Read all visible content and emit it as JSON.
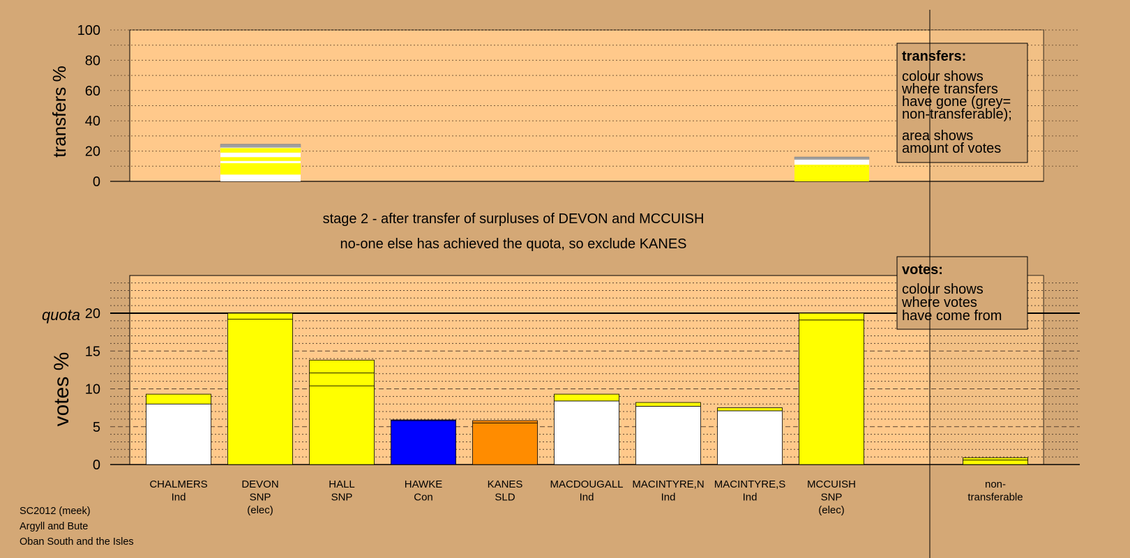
{
  "footer": {
    "line1": "SC2012 (meek)",
    "line2": "Argyll and Bute",
    "line3": "Oban South and the Isles"
  },
  "stage": {
    "line1": "stage 2 - after transfer of surpluses of DEVON and MCCUISH",
    "line2": "no-one else has achieved the quota, so exclude KANES"
  },
  "legend_transfers": {
    "title": "transfers:",
    "body": [
      "colour shows",
      "where transfers",
      "have gone (grey=",
      "non-transferable);"
    ],
    "body2": [
      "area shows",
      "amount of votes"
    ]
  },
  "legend_votes": {
    "title": "votes:",
    "body": [
      "colour shows",
      "where votes",
      "have come from"
    ]
  },
  "colors": {
    "page_background": "#d4a876",
    "plot_background": "#ffc98b",
    "shaded_background": "#e2b57f",
    "white": "#ffffff",
    "snp_yellow": "#ffff00",
    "con_blue": "#0000ff",
    "sld_orange": "#ff8c00",
    "grey": "#a0a0a0"
  },
  "chart_data": [
    {
      "type": "bar",
      "stacked": true,
      "ylabel": "transfers %",
      "ylim": [
        0,
        100
      ],
      "yticks": [
        0,
        20,
        40,
        60,
        80,
        100
      ],
      "grid": "dotted",
      "bars": [
        {
          "candidate": "DEVON",
          "segments": [
            {
              "value": 4.5,
              "color": "#ffffff"
            },
            {
              "value": 1.5,
              "color": "#ffff00"
            },
            {
              "value": 6.0,
              "color": "#ffff00"
            },
            {
              "value": 1.5,
              "color": "#ffffff"
            },
            {
              "value": 2.5,
              "color": "#ffff00"
            },
            {
              "value": 3.0,
              "color": "#ffffff"
            },
            {
              "value": 3.0,
              "color": "#ffff00"
            },
            {
              "value": 0.5,
              "color": "#ffffff"
            },
            {
              "value": 2.0,
              "color": "#a0a0a0"
            }
          ]
        },
        {
          "candidate": "MCCUISH",
          "segments": [
            {
              "value": 10.0,
              "color": "#ffff00"
            },
            {
              "value": 1.0,
              "color": "#ffff00"
            },
            {
              "value": 3.5,
              "color": "#ffffff"
            },
            {
              "value": 1.5,
              "color": "#a0a0a0"
            }
          ]
        }
      ]
    },
    {
      "type": "bar",
      "stacked": true,
      "ylabel": "votes %",
      "ylim": [
        0,
        20
      ],
      "yticks": [
        0,
        5,
        10,
        15,
        20
      ],
      "quota": {
        "label": "quota",
        "value": 20
      },
      "grid": "dashed",
      "categories": [
        {
          "name": "CHALMERS",
          "party": "Ind",
          "note": ""
        },
        {
          "name": "DEVON",
          "party": "SNP",
          "note": "(elec)"
        },
        {
          "name": "HALL",
          "party": "SNP",
          "note": ""
        },
        {
          "name": "HAWKE",
          "party": "Con",
          "note": ""
        },
        {
          "name": "KANES",
          "party": "SLD",
          "note": ""
        },
        {
          "name": "MACDOUGALL",
          "party": "Ind",
          "note": ""
        },
        {
          "name": "MACINTYRE,N",
          "party": "Ind",
          "note": ""
        },
        {
          "name": "MACINTYRE,S",
          "party": "Ind",
          "note": ""
        },
        {
          "name": "MCCUISH",
          "party": "SNP",
          "note": "(elec)"
        },
        {
          "name": "non-",
          "party": "transferable",
          "note": ""
        }
      ],
      "bars": [
        {
          "segments": [
            {
              "value": 8.0,
              "color": "#ffffff"
            },
            {
              "value": 1.3,
              "color": "#ffff00"
            }
          ]
        },
        {
          "segments": [
            {
              "value": 19.2,
              "color": "#ffff00"
            },
            {
              "value": 0.8,
              "color": "#ffff00"
            }
          ]
        },
        {
          "segments": [
            {
              "value": 10.4,
              "color": "#ffff00"
            },
            {
              "value": 1.7,
              "color": "#ffff00"
            },
            {
              "value": 1.7,
              "color": "#ffff00"
            }
          ]
        },
        {
          "segments": [
            {
              "value": 5.8,
              "color": "#0000ff"
            },
            {
              "value": 0.1,
              "color": "#0000ff"
            }
          ]
        },
        {
          "segments": [
            {
              "value": 5.5,
              "color": "#ff8c00"
            },
            {
              "value": 0.3,
              "color": "#ff8c00"
            }
          ]
        },
        {
          "segments": [
            {
              "value": 8.4,
              "color": "#ffffff"
            },
            {
              "value": 0.9,
              "color": "#ffff00"
            }
          ]
        },
        {
          "segments": [
            {
              "value": 7.7,
              "color": "#ffffff"
            },
            {
              "value": 0.5,
              "color": "#ffff00"
            }
          ]
        },
        {
          "segments": [
            {
              "value": 7.1,
              "color": "#ffffff"
            },
            {
              "value": 0.4,
              "color": "#ffff00"
            }
          ]
        },
        {
          "segments": [
            {
              "value": 19.1,
              "color": "#ffff00"
            },
            {
              "value": 0.9,
              "color": "#ffff00"
            }
          ]
        },
        {
          "segments": [
            {
              "value": 0.6,
              "color": "#ffff00"
            },
            {
              "value": 0.3,
              "color": "#ffff00"
            }
          ]
        }
      ]
    }
  ]
}
